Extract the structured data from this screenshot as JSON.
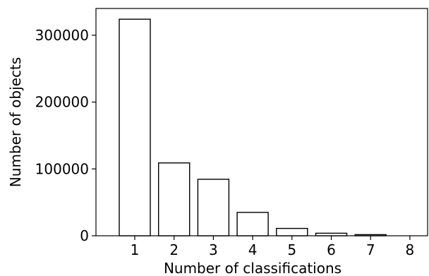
{
  "chart_data": {
    "type": "bar",
    "title": "",
    "xlabel": "Number of classifications",
    "ylabel": "Number of objects",
    "categories": [
      "1",
      "2",
      "3",
      "4",
      "5",
      "6",
      "7",
      "8"
    ],
    "values": [
      324000,
      109000,
      84500,
      35000,
      11000,
      3800,
      1700,
      0
    ],
    "ylim": [
      0,
      340000
    ],
    "yticks": [
      {
        "value": 0,
        "label": "0"
      },
      {
        "value": 100000,
        "label": "100000"
      },
      {
        "value": 200000,
        "label": "200000"
      },
      {
        "value": 300000,
        "label": "300000"
      }
    ],
    "grid": false,
    "colors": {
      "bar_fill": "#ffffff",
      "bar_stroke": "#000000"
    }
  }
}
